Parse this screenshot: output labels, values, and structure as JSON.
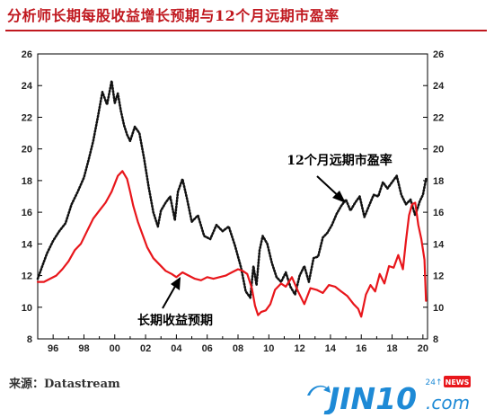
{
  "title": "分析师长期每股收益增长预期与12个月远期市盈率",
  "source": "来源：Datastream",
  "logo": {
    "text": "JIN10",
    "suffix": ".com",
    "badge": "24↑",
    "news": "NEWS"
  },
  "colors": {
    "title": "#c0181f",
    "eps": "#e8161b",
    "pe": "#111111",
    "logo": "#1e8ad6"
  },
  "chart_data": {
    "type": "line",
    "title": "分析师长期每股收益增长预期与12个月远期市盈率",
    "x_ticks": [
      "96",
      "98",
      "00",
      "02",
      "04",
      "06",
      "08",
      "10",
      "12",
      "14",
      "16",
      "18",
      "20"
    ],
    "xlim": [
      1995.0,
      2020.3
    ],
    "ylim": [
      8,
      26
    ],
    "y_ticks": [
      "8",
      "10",
      "12",
      "14",
      "16",
      "18",
      "20",
      "22",
      "24",
      "26"
    ],
    "grid": false,
    "annotations": [
      {
        "label": "12个月远期市盈率",
        "series": "pe"
      },
      {
        "label": "长期收益预期",
        "series": "eps"
      }
    ],
    "series": [
      {
        "id": "pe",
        "style": "dotted",
        "color": "#111111",
        "x": [
          1995.0,
          1995.3,
          1995.6,
          1996.0,
          1996.4,
          1996.8,
          1997.2,
          1997.6,
          1998.0,
          1998.3,
          1998.6,
          1998.9,
          1999.2,
          1999.5,
          1999.8,
          2000.0,
          2000.2,
          2000.4,
          2000.6,
          2000.8,
          2001.0,
          2001.3,
          2001.6,
          2001.9,
          2002.2,
          2002.5,
          2002.8,
          2003.0,
          2003.3,
          2003.6,
          2003.9,
          2004.1,
          2004.4,
          2004.7,
          2005.0,
          2005.4,
          2005.8,
          2006.2,
          2006.6,
          2007.0,
          2007.4,
          2007.8,
          2008.2,
          2008.5,
          2008.8,
          2009.0,
          2009.2,
          2009.4,
          2009.6,
          2009.9,
          2010.2,
          2010.5,
          2010.8,
          2011.1,
          2011.4,
          2011.7,
          2012.0,
          2012.3,
          2012.6,
          2012.9,
          2013.2,
          2013.5,
          2013.8,
          2014.1,
          2014.4,
          2014.7,
          2015.0,
          2015.3,
          2015.6,
          2015.9,
          2016.2,
          2016.5,
          2016.8,
          2017.1,
          2017.4,
          2017.7,
          2018.0,
          2018.3,
          2018.6,
          2018.9,
          2019.2,
          2019.5,
          2019.8,
          2020.0,
          2020.2
        ],
        "y": [
          11.8,
          12.6,
          13.4,
          14.2,
          14.8,
          15.3,
          16.5,
          17.3,
          18.2,
          19.3,
          20.5,
          22.0,
          23.6,
          22.8,
          24.3,
          22.9,
          23.5,
          22.4,
          21.5,
          20.9,
          20.5,
          21.4,
          21.0,
          19.4,
          17.6,
          16.0,
          15.1,
          16.1,
          16.6,
          17.0,
          15.5,
          17.3,
          18.1,
          16.8,
          15.4,
          15.8,
          14.5,
          14.3,
          15.2,
          14.8,
          15.1,
          13.9,
          12.5,
          11.0,
          10.6,
          12.6,
          11.4,
          13.6,
          14.5,
          14.0,
          12.8,
          11.9,
          11.6,
          12.2,
          11.3,
          10.8,
          12.0,
          12.6,
          11.6,
          13.1,
          13.2,
          14.4,
          14.7,
          15.2,
          15.9,
          16.4,
          16.8,
          16.1,
          16.6,
          17.0,
          15.7,
          16.4,
          17.1,
          17.0,
          17.9,
          17.5,
          17.9,
          18.3,
          17.1,
          16.5,
          16.8,
          15.8,
          16.7,
          17.1,
          18.1
        ]
      },
      {
        "id": "eps",
        "style": "solid",
        "color": "#e8161b",
        "x": [
          1995.0,
          1995.4,
          1995.8,
          1996.2,
          1996.6,
          1997.0,
          1997.4,
          1997.8,
          1998.2,
          1998.6,
          1999.0,
          1999.4,
          1999.8,
          2000.2,
          2000.5,
          2000.8,
          2001.0,
          2001.2,
          2001.5,
          2001.8,
          2002.1,
          2002.5,
          2002.9,
          2003.3,
          2003.7,
          2004.0,
          2004.4,
          2004.8,
          2005.2,
          2005.6,
          2006.0,
          2006.4,
          2006.8,
          2007.2,
          2007.6,
          2008.0,
          2008.3,
          2008.6,
          2008.9,
          2009.1,
          2009.3,
          2009.5,
          2009.8,
          2010.1,
          2010.4,
          2010.8,
          2011.1,
          2011.5,
          2011.9,
          2012.3,
          2012.7,
          2013.1,
          2013.5,
          2013.9,
          2014.3,
          2014.7,
          2015.1,
          2015.5,
          2015.8,
          2016.0,
          2016.3,
          2016.6,
          2016.9,
          2017.2,
          2017.5,
          2017.8,
          2018.1,
          2018.4,
          2018.7,
          2018.9,
          2019.1,
          2019.3,
          2019.5,
          2019.7,
          2019.9,
          2020.1,
          2020.2
        ],
        "y": [
          11.6,
          11.6,
          11.8,
          12.0,
          12.4,
          12.9,
          13.6,
          14.0,
          14.8,
          15.6,
          16.1,
          16.6,
          17.3,
          18.3,
          18.6,
          18.1,
          17.3,
          16.4,
          15.4,
          14.6,
          13.8,
          13.1,
          12.7,
          12.3,
          12.1,
          11.9,
          12.2,
          12.0,
          11.8,
          11.7,
          11.9,
          11.8,
          11.9,
          12.0,
          12.2,
          12.4,
          12.3,
          12.1,
          11.2,
          10.1,
          9.5,
          9.7,
          9.8,
          10.2,
          11.1,
          11.5,
          11.3,
          11.9,
          11.0,
          10.2,
          11.2,
          11.1,
          10.9,
          11.4,
          11.3,
          11.0,
          10.7,
          10.2,
          9.9,
          9.4,
          10.8,
          11.4,
          11.0,
          12.1,
          11.5,
          12.6,
          12.5,
          13.3,
          12.4,
          14.2,
          15.8,
          16.5,
          16.6,
          15.2,
          14.3,
          13.0,
          10.4
        ]
      }
    ]
  }
}
